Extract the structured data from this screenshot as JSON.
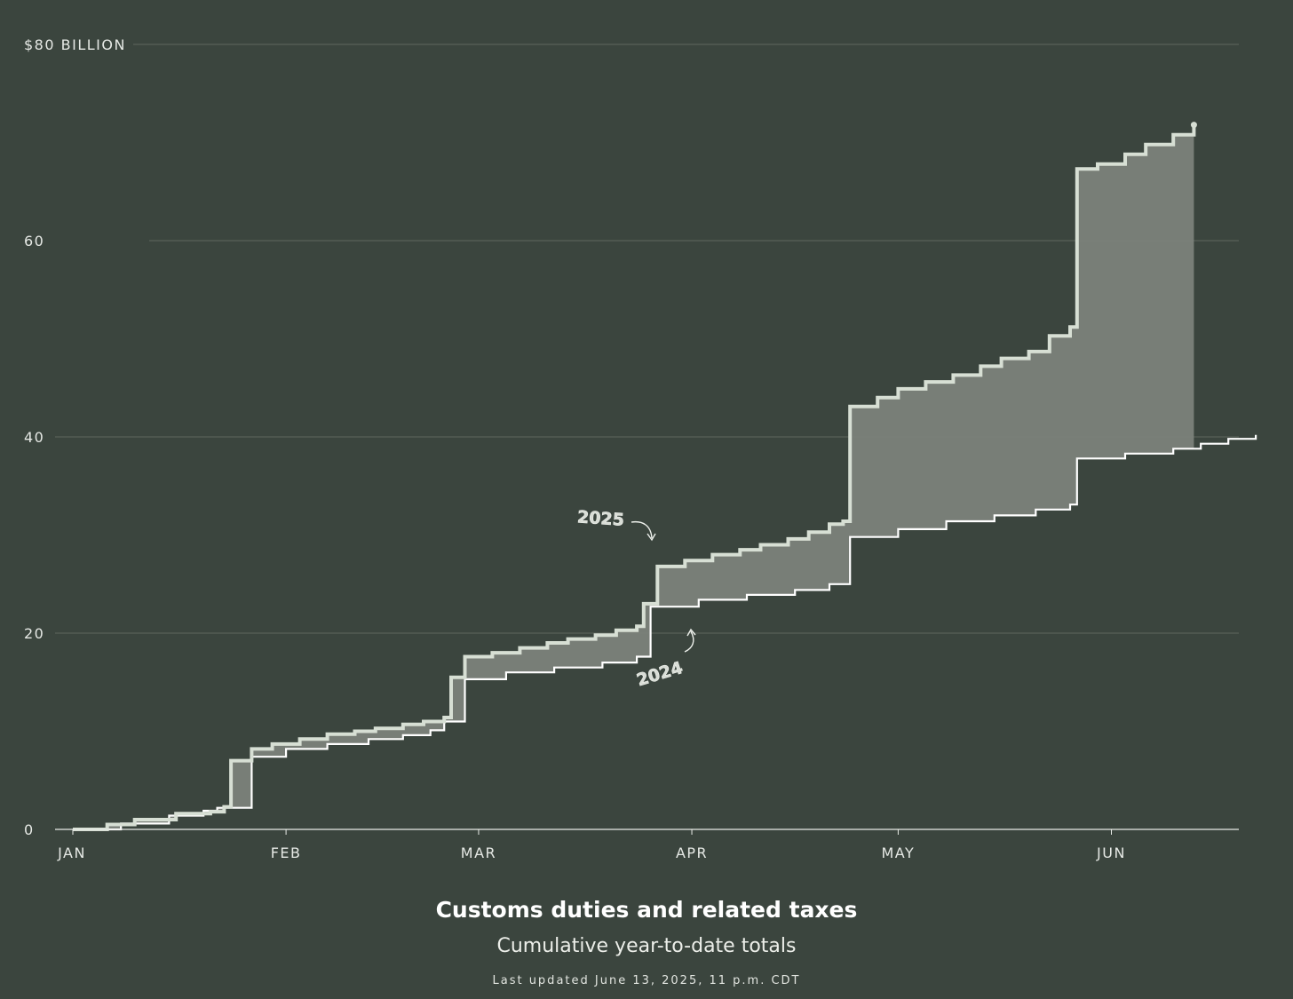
{
  "chart_data": {
    "type": "area",
    "title": "Customs duties and related taxes",
    "subtitle": "Cumulative year-to-date totals",
    "note": "Last updated June 13, 2025, 11 p.m. CDT",
    "ylim": [
      0,
      80
    ],
    "yticks": [
      {
        "value": 0,
        "label": "0"
      },
      {
        "value": 20,
        "label": "20"
      },
      {
        "value": 40,
        "label": "40"
      },
      {
        "value": 60,
        "label": "60"
      },
      {
        "value": 80,
        "label": "$80 BILLION"
      }
    ],
    "xticks": [
      {
        "date": "2025-01-01",
        "label": "JAN"
      },
      {
        "date": "2025-02-01",
        "label": "FEB"
      },
      {
        "date": "2025-03-01",
        "label": "MAR"
      },
      {
        "date": "2025-04-01",
        "label": "APR"
      },
      {
        "date": "2025-05-01",
        "label": "MAY"
      },
      {
        "date": "2025-06-01",
        "label": "JUN"
      }
    ],
    "grid": true,
    "shaded_between_series": true,
    "colors": {
      "background": "#3b453e",
      "line_2025": "#d7dfd4",
      "line_2024": "#ffffff",
      "fill_between": "#7b827a",
      "grid": "#5f675f"
    },
    "series": [
      {
        "name": "2025",
        "points": [
          [
            "2025-01-01",
            0
          ],
          [
            "2025-01-06",
            0.5
          ],
          [
            "2025-01-10",
            1.0
          ],
          [
            "2025-01-16",
            1.6
          ],
          [
            "2025-01-21",
            1.8
          ],
          [
            "2025-01-23",
            2.3
          ],
          [
            "2025-01-24",
            7.0
          ],
          [
            "2025-01-27",
            8.2
          ],
          [
            "2025-01-30",
            8.7
          ],
          [
            "2025-02-03",
            9.2
          ],
          [
            "2025-02-07",
            9.7
          ],
          [
            "2025-02-11",
            10.0
          ],
          [
            "2025-02-14",
            10.3
          ],
          [
            "2025-02-18",
            10.7
          ],
          [
            "2025-02-21",
            11.0
          ],
          [
            "2025-02-24",
            11.4
          ],
          [
            "2025-02-25",
            15.5
          ],
          [
            "2025-02-27",
            17.6
          ],
          [
            "2025-03-03",
            18.0
          ],
          [
            "2025-03-07",
            18.5
          ],
          [
            "2025-03-11",
            19.0
          ],
          [
            "2025-03-14",
            19.4
          ],
          [
            "2025-03-18",
            19.8
          ],
          [
            "2025-03-21",
            20.3
          ],
          [
            "2025-03-24",
            20.7
          ],
          [
            "2025-03-25",
            23.0
          ],
          [
            "2025-03-27",
            26.8
          ],
          [
            "2025-03-31",
            27.4
          ],
          [
            "2025-04-04",
            28.0
          ],
          [
            "2025-04-08",
            28.5
          ],
          [
            "2025-04-11",
            29.0
          ],
          [
            "2025-04-15",
            29.6
          ],
          [
            "2025-04-18",
            30.3
          ],
          [
            "2025-04-21",
            31.1
          ],
          [
            "2025-04-23",
            31.4
          ],
          [
            "2025-04-24",
            43.1
          ],
          [
            "2025-04-28",
            44.0
          ],
          [
            "2025-05-01",
            44.9
          ],
          [
            "2025-05-05",
            45.6
          ],
          [
            "2025-05-09",
            46.3
          ],
          [
            "2025-05-13",
            47.2
          ],
          [
            "2025-05-16",
            48.0
          ],
          [
            "2025-05-20",
            48.7
          ],
          [
            "2025-05-23",
            50.3
          ],
          [
            "2025-05-26",
            51.2
          ],
          [
            "2025-05-27",
            67.3
          ],
          [
            "2025-05-30",
            67.8
          ],
          [
            "2025-06-03",
            68.8
          ],
          [
            "2025-06-06",
            69.8
          ],
          [
            "2025-06-10",
            70.8
          ],
          [
            "2025-06-13",
            71.8
          ]
        ]
      },
      {
        "name": "2024",
        "points": [
          [
            "2025-01-01",
            0
          ],
          [
            "2025-01-08",
            0.6
          ],
          [
            "2025-01-15",
            1.4
          ],
          [
            "2025-01-20",
            1.9
          ],
          [
            "2025-01-22",
            2.2
          ],
          [
            "2025-01-27",
            7.4
          ],
          [
            "2025-02-01",
            8.2
          ],
          [
            "2025-02-07",
            8.7
          ],
          [
            "2025-02-13",
            9.2
          ],
          [
            "2025-02-18",
            9.6
          ],
          [
            "2025-02-22",
            10.1
          ],
          [
            "2025-02-24",
            11.0
          ],
          [
            "2025-02-27",
            15.3
          ],
          [
            "2025-03-05",
            16.0
          ],
          [
            "2025-03-12",
            16.5
          ],
          [
            "2025-03-19",
            17.0
          ],
          [
            "2025-03-24",
            17.6
          ],
          [
            "2025-03-26",
            22.7
          ],
          [
            "2025-04-02",
            23.4
          ],
          [
            "2025-04-09",
            23.9
          ],
          [
            "2025-04-16",
            24.4
          ],
          [
            "2025-04-21",
            25.0
          ],
          [
            "2025-04-24",
            29.8
          ],
          [
            "2025-05-01",
            30.6
          ],
          [
            "2025-05-08",
            31.4
          ],
          [
            "2025-05-15",
            32.0
          ],
          [
            "2025-05-21",
            32.6
          ],
          [
            "2025-05-26",
            33.1
          ],
          [
            "2025-05-27",
            37.8
          ],
          [
            "2025-06-03",
            38.3
          ],
          [
            "2025-06-10",
            38.8
          ],
          [
            "2025-06-14",
            39.3
          ],
          [
            "2025-06-18",
            39.8
          ],
          [
            "2025-06-22",
            40.2
          ]
        ]
      }
    ]
  }
}
